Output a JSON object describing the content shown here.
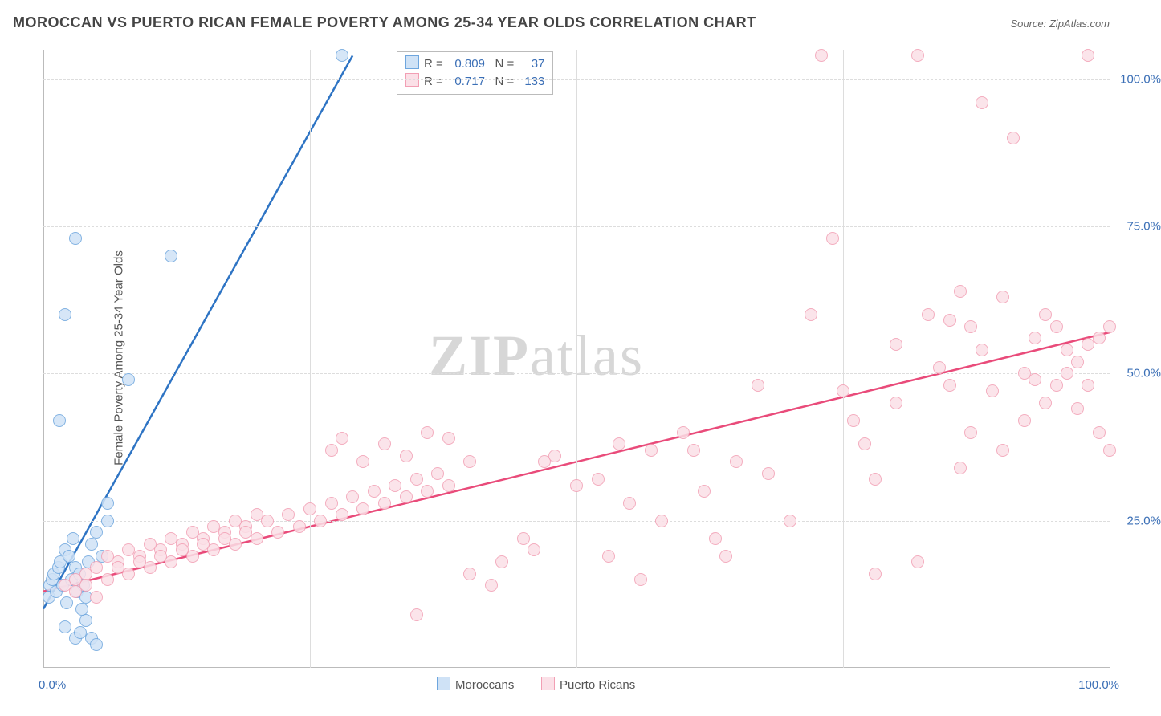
{
  "title": "MOROCCAN VS PUERTO RICAN FEMALE POVERTY AMONG 25-34 YEAR OLDS CORRELATION CHART",
  "source": "Source: ZipAtlas.com",
  "ylabel": "Female Poverty Among 25-34 Year Olds",
  "watermark_bold": "ZIP",
  "watermark_rest": "atlas",
  "chart": {
    "type": "scatter",
    "xlim": [
      0,
      100
    ],
    "ylim": [
      0,
      105
    ],
    "x_tick_left": "0.0%",
    "x_tick_right": "100.0%",
    "y_ticks": [
      {
        "v": 25,
        "label": "25.0%"
      },
      {
        "v": 50,
        "label": "50.0%"
      },
      {
        "v": 75,
        "label": "75.0%"
      },
      {
        "v": 100,
        "label": "100.0%"
      }
    ],
    "x_gridlines": [
      0,
      25,
      50,
      75,
      100
    ],
    "grid_color": "#dddddd",
    "background_color": "#ffffff",
    "marker_radius": 8,
    "marker_border_width": 1.5,
    "line_width": 2.5,
    "series": [
      {
        "name": "Moroccans",
        "fill": "#cfe2f6",
        "stroke": "#6ea6de",
        "line_color": "#2e74c4",
        "R": "0.809",
        "N": "37",
        "regression": {
          "x1": 0,
          "y1": 10,
          "x2": 29,
          "y2": 104
        },
        "points": [
          [
            0.5,
            12
          ],
          [
            0.6,
            14
          ],
          [
            0.8,
            15
          ],
          [
            1,
            16
          ],
          [
            1.2,
            13
          ],
          [
            1.4,
            17
          ],
          [
            1.6,
            18
          ],
          [
            1.8,
            14
          ],
          [
            2,
            20
          ],
          [
            2.2,
            11
          ],
          [
            2.4,
            19
          ],
          [
            2.6,
            15
          ],
          [
            2.8,
            22
          ],
          [
            3,
            17
          ],
          [
            3.2,
            13
          ],
          [
            3.4,
            16
          ],
          [
            3.6,
            10
          ],
          [
            3.8,
            14
          ],
          [
            4,
            12
          ],
          [
            4.2,
            18
          ],
          [
            4.5,
            21
          ],
          [
            5,
            23
          ],
          [
            5.5,
            19
          ],
          [
            6,
            25
          ],
          [
            2,
            7
          ],
          [
            3,
            5
          ],
          [
            3.5,
            6
          ],
          [
            4,
            8
          ],
          [
            4.5,
            5
          ],
          [
            5,
            4
          ],
          [
            6,
            28
          ],
          [
            1.5,
            42
          ],
          [
            2,
            60
          ],
          [
            3,
            73
          ],
          [
            8,
            49
          ],
          [
            12,
            70
          ],
          [
            28,
            104
          ]
        ]
      },
      {
        "name": "Puerto Ricans",
        "fill": "#fbe0e7",
        "stroke": "#f29fb4",
        "line_color": "#e94b7a",
        "R": "0.717",
        "N": "133",
        "regression": {
          "x1": 0,
          "y1": 13,
          "x2": 100,
          "y2": 57
        },
        "points": [
          [
            2,
            14
          ],
          [
            3,
            15
          ],
          [
            4,
            16
          ],
          [
            5,
            17
          ],
          [
            6,
            15
          ],
          [
            7,
            18
          ],
          [
            8,
            16
          ],
          [
            9,
            19
          ],
          [
            10,
            17
          ],
          [
            11,
            20
          ],
          [
            12,
            18
          ],
          [
            13,
            21
          ],
          [
            14,
            19
          ],
          [
            15,
            22
          ],
          [
            16,
            20
          ],
          [
            17,
            23
          ],
          [
            18,
            21
          ],
          [
            19,
            24
          ],
          [
            20,
            22
          ],
          [
            21,
            25
          ],
          [
            22,
            23
          ],
          [
            23,
            26
          ],
          [
            24,
            24
          ],
          [
            25,
            27
          ],
          [
            26,
            25
          ],
          [
            27,
            28
          ],
          [
            28,
            26
          ],
          [
            29,
            29
          ],
          [
            30,
            27
          ],
          [
            31,
            30
          ],
          [
            32,
            28
          ],
          [
            33,
            31
          ],
          [
            34,
            29
          ],
          [
            35,
            32
          ],
          [
            36,
            30
          ],
          [
            37,
            33
          ],
          [
            38,
            31
          ],
          [
            27,
            37
          ],
          [
            28,
            39
          ],
          [
            30,
            35
          ],
          [
            32,
            38
          ],
          [
            34,
            36
          ],
          [
            36,
            40
          ],
          [
            38,
            39
          ],
          [
            40,
            35
          ],
          [
            45,
            22
          ],
          [
            46,
            20
          ],
          [
            47,
            35
          ],
          [
            48,
            36
          ],
          [
            50,
            31
          ],
          [
            52,
            32
          ],
          [
            53,
            19
          ],
          [
            54,
            38
          ],
          [
            55,
            28
          ],
          [
            56,
            15
          ],
          [
            57,
            37
          ],
          [
            58,
            25
          ],
          [
            40,
            16
          ],
          [
            42,
            14
          ],
          [
            43,
            18
          ],
          [
            35,
            9
          ],
          [
            60,
            40
          ],
          [
            61,
            37
          ],
          [
            62,
            30
          ],
          [
            63,
            22
          ],
          [
            64,
            19
          ],
          [
            65,
            35
          ],
          [
            67,
            48
          ],
          [
            68,
            33
          ],
          [
            70,
            25
          ],
          [
            72,
            60
          ],
          [
            73,
            104
          ],
          [
            74,
            73
          ],
          [
            75,
            47
          ],
          [
            76,
            42
          ],
          [
            77,
            38
          ],
          [
            78,
            32
          ],
          [
            80,
            45
          ],
          [
            82,
            104
          ],
          [
            83,
            60
          ],
          [
            84,
            51
          ],
          [
            85,
            48
          ],
          [
            86,
            64
          ],
          [
            87,
            58
          ],
          [
            88,
            54
          ],
          [
            89,
            47
          ],
          [
            90,
            63
          ],
          [
            91,
            90
          ],
          [
            92,
            50
          ],
          [
            93,
            56
          ],
          [
            94,
            45
          ],
          [
            95,
            58
          ],
          [
            96,
            54
          ],
          [
            97,
            52
          ],
          [
            98,
            48
          ],
          [
            99,
            56
          ],
          [
            100,
            58
          ],
          [
            88,
            96
          ],
          [
            98,
            104
          ],
          [
            78,
            16
          ],
          [
            82,
            18
          ],
          [
            86,
            34
          ],
          [
            87,
            40
          ],
          [
            90,
            37
          ],
          [
            92,
            42
          ],
          [
            93,
            49
          ],
          [
            94,
            60
          ],
          [
            95,
            48
          ],
          [
            96,
            50
          ],
          [
            97,
            44
          ],
          [
            98,
            55
          ],
          [
            99,
            40
          ],
          [
            100,
            37
          ],
          [
            6,
            19
          ],
          [
            7,
            17
          ],
          [
            8,
            20
          ],
          [
            9,
            18
          ],
          [
            10,
            21
          ],
          [
            11,
            19
          ],
          [
            12,
            22
          ],
          [
            13,
            20
          ],
          [
            14,
            23
          ],
          [
            15,
            21
          ],
          [
            16,
            24
          ],
          [
            17,
            22
          ],
          [
            18,
            25
          ],
          [
            19,
            23
          ],
          [
            20,
            26
          ],
          [
            3,
            13
          ],
          [
            4,
            14
          ],
          [
            5,
            12
          ],
          [
            80,
            55
          ],
          [
            85,
            59
          ]
        ]
      }
    ]
  },
  "legend_top": {
    "rows": [
      {
        "sw_fill": "#cfe2f6",
        "sw_stroke": "#6ea6de",
        "r_label": "R =",
        "r_val": "0.809",
        "n_label": "N =",
        "n_val": "37"
      },
      {
        "sw_fill": "#fbe0e7",
        "sw_stroke": "#f29fb4",
        "r_label": "R =",
        "r_val": "0.717",
        "n_label": "N =",
        "n_val": "133"
      }
    ]
  },
  "legend_bottom": [
    {
      "sw_fill": "#cfe2f6",
      "sw_stroke": "#6ea6de",
      "label": "Moroccans"
    },
    {
      "sw_fill": "#fbe0e7",
      "sw_stroke": "#f29fb4",
      "label": "Puerto Ricans"
    }
  ]
}
